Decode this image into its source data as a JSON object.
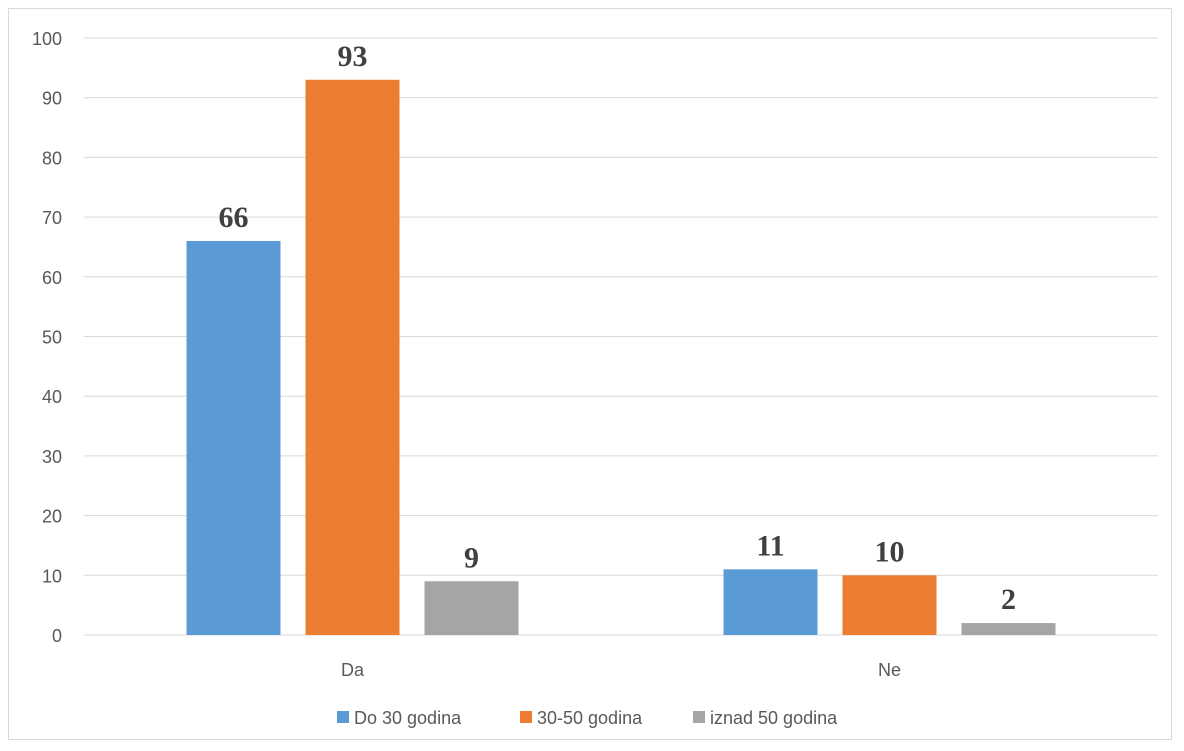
{
  "chart_data": {
    "type": "bar",
    "title": "",
    "xlabel": "",
    "ylabel": "",
    "categories": [
      "Da",
      "Ne"
    ],
    "series": [
      {
        "name": "Do 30 godina",
        "values": [
          66,
          11
        ],
        "color": "#5b9bd5"
      },
      {
        "name": "30-50 godina",
        "values": [
          93,
          10
        ],
        "color": "#ed7d31"
      },
      {
        "name": "iznad 50 godina",
        "values": [
          9,
          2
        ],
        "color": "#a5a5a5"
      }
    ],
    "ylim": [
      0,
      100
    ],
    "yticks": [
      0,
      10,
      20,
      30,
      40,
      50,
      60,
      70,
      80,
      90,
      100
    ],
    "grid": true,
    "legend_position": "bottom"
  }
}
